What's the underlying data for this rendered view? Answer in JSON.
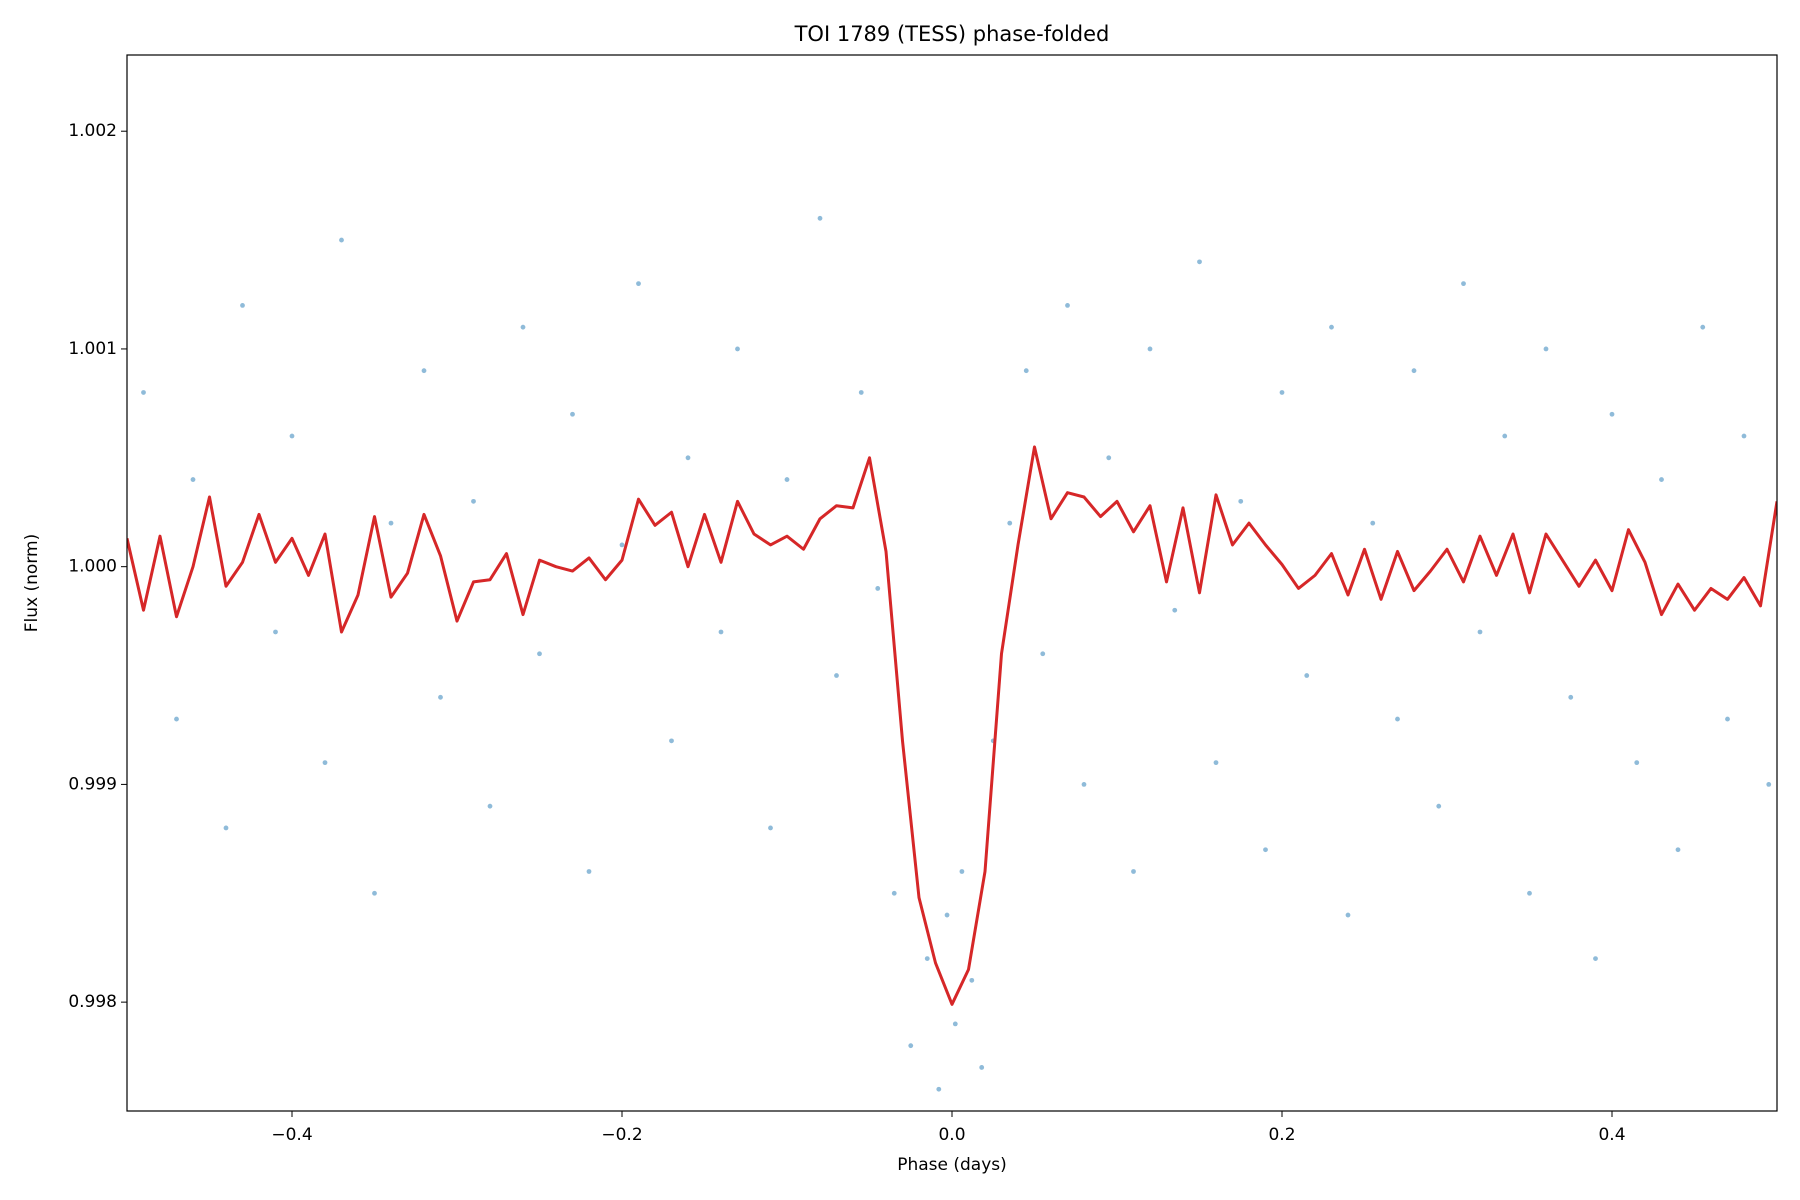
{
  "chart_data": {
    "type": "scatter",
    "title": "TOI 1789 (TESS) phase-folded",
    "x_label": "Phase (days)",
    "y_label": "Flux (norm)",
    "xlim": [
      -0.5,
      0.5
    ],
    "ylim": [
      0.9975,
      1.00235
    ],
    "xticks": [
      {
        "value": -0.4,
        "label": "−0.4"
      },
      {
        "value": -0.2,
        "label": "−0.2"
      },
      {
        "value": 0.0,
        "label": "0.0"
      },
      {
        "value": 0.2,
        "label": "0.2"
      },
      {
        "value": 0.4,
        "label": "0.4"
      }
    ],
    "yticks": [
      0.998,
      0.999,
      {
        "value": 1.0,
        "label": "1.000"
      },
      1.001,
      1.002
    ],
    "grid": false,
    "series": [
      {
        "type": "scatter",
        "color": "#1f77b4",
        "opacity": 0.5,
        "x": [
          -0.49,
          -0.47,
          -0.46,
          -0.44,
          -0.43,
          -0.41,
          -0.4,
          -0.38,
          -0.37,
          -0.35,
          -0.34,
          -0.32,
          -0.31,
          -0.29,
          -0.28,
          -0.26,
          -0.25,
          -0.23,
          -0.22,
          -0.2,
          -0.19,
          -0.17,
          -0.16,
          -0.14,
          -0.13,
          -0.11,
          -0.1,
          -0.08,
          -0.07,
          -0.055,
          -0.045,
          -0.035,
          -0.025,
          -0.015,
          -0.008,
          -0.003,
          0.002,
          0.006,
          0.012,
          0.018,
          0.025,
          0.035,
          0.045,
          0.055,
          0.07,
          0.08,
          0.095,
          0.11,
          0.12,
          0.135,
          0.15,
          0.16,
          0.175,
          0.19,
          0.2,
          0.215,
          0.23,
          0.24,
          0.255,
          0.27,
          0.28,
          0.295,
          0.31,
          0.32,
          0.335,
          0.35,
          0.36,
          0.375,
          0.39,
          0.4,
          0.415,
          0.43,
          0.44,
          0.455,
          0.47,
          0.48,
          0.495
        ],
        "values": [
          1.0008,
          0.9993,
          1.0004,
          0.9988,
          1.0012,
          0.9997,
          1.0006,
          0.9991,
          1.0015,
          0.9985,
          1.0002,
          1.0009,
          0.9994,
          1.0003,
          0.9989,
          1.0011,
          0.9996,
          1.0007,
          0.9986,
          1.0001,
          1.0013,
          0.9992,
          1.0005,
          0.9997,
          1.001,
          0.9988,
          1.0004,
          1.0016,
          0.9995,
          1.0008,
          0.9999,
          0.9985,
          0.9978,
          0.9982,
          0.9976,
          0.9984,
          0.9979,
          0.9986,
          0.9981,
          0.9977,
          0.9992,
          1.0002,
          1.0009,
          0.9996,
          1.0012,
          0.999,
          1.0005,
          0.9986,
          1.001,
          0.9998,
          1.0014,
          0.9991,
          1.0003,
          0.9987,
          1.0008,
          0.9995,
          1.0011,
          0.9984,
          1.0002,
          0.9993,
          1.0009,
          0.9989,
          1.0013,
          0.9997,
          1.0006,
          0.9985,
          1.001,
          0.9994,
          0.9982,
          1.0007,
          0.9991,
          1.0004,
          0.9987,
          1.0011,
          0.9993,
          1.0006,
          0.999
        ]
      },
      {
        "type": "line",
        "color": "#d62728",
        "x": [
          -0.5,
          -0.49,
          -0.48,
          -0.47,
          -0.46,
          -0.45,
          -0.44,
          -0.43,
          -0.42,
          -0.41,
          -0.4,
          -0.39,
          -0.38,
          -0.37,
          -0.36,
          -0.35,
          -0.34,
          -0.33,
          -0.32,
          -0.31,
          -0.3,
          -0.29,
          -0.28,
          -0.27,
          -0.26,
          -0.25,
          -0.24,
          -0.23,
          -0.22,
          -0.21,
          -0.2,
          -0.19,
          -0.18,
          -0.17,
          -0.16,
          -0.15,
          -0.14,
          -0.13,
          -0.12,
          -0.11,
          -0.1,
          -0.09,
          -0.08,
          -0.07,
          -0.06,
          -0.05,
          -0.04,
          -0.03,
          -0.02,
          -0.01,
          0.0,
          0.01,
          0.02,
          0.03,
          0.04,
          0.05,
          0.06,
          0.07,
          0.08,
          0.09,
          0.1,
          0.11,
          0.12,
          0.13,
          0.14,
          0.15,
          0.16,
          0.17,
          0.18,
          0.19,
          0.2,
          0.21,
          0.22,
          0.23,
          0.24,
          0.25,
          0.26,
          0.27,
          0.28,
          0.29,
          0.3,
          0.31,
          0.32,
          0.33,
          0.34,
          0.35,
          0.36,
          0.37,
          0.38,
          0.39,
          0.4,
          0.41,
          0.42,
          0.43,
          0.44,
          0.45,
          0.46,
          0.47,
          0.48,
          0.49,
          0.5
        ],
        "values": [
          1.00013,
          0.9998,
          1.00014,
          0.99977,
          1.0,
          1.00032,
          0.99991,
          1.00002,
          1.00024,
          1.00002,
          1.00013,
          0.99996,
          1.00015,
          0.9997,
          0.99987,
          1.00023,
          0.99986,
          0.99997,
          1.00024,
          1.00005,
          0.99975,
          0.99993,
          0.99994,
          1.00006,
          0.99978,
          1.00003,
          1.0,
          0.99998,
          1.00004,
          0.99994,
          1.00003,
          1.00031,
          1.00019,
          1.00025,
          1.0,
          1.00024,
          1.00002,
          1.0003,
          1.00015,
          1.0001,
          1.00014,
          1.00008,
          1.00022,
          1.00028,
          1.00027,
          1.0005,
          1.00007,
          0.9992,
          0.99848,
          0.99818,
          0.99799,
          0.99815,
          0.9986,
          0.9996,
          1.0001,
          1.00055,
          1.00022,
          1.00034,
          1.00032,
          1.00023,
          1.0003,
          1.00016,
          1.00028,
          0.99993,
          1.00027,
          0.99988,
          1.00033,
          1.0001,
          1.0002,
          1.0001,
          1.00001,
          0.9999,
          0.99996,
          1.00006,
          0.99987,
          1.00008,
          0.99985,
          1.00007,
          0.99989,
          0.99998,
          1.00008,
          0.99993,
          1.00014,
          0.99996,
          1.00015,
          0.99988,
          1.00015,
          1.00003,
          0.99991,
          1.00003,
          0.99989,
          1.00017,
          1.00002,
          0.99978,
          0.99992,
          0.9998,
          0.9999,
          0.99985,
          0.99995,
          0.99982,
          1.0003
        ]
      }
    ]
  }
}
